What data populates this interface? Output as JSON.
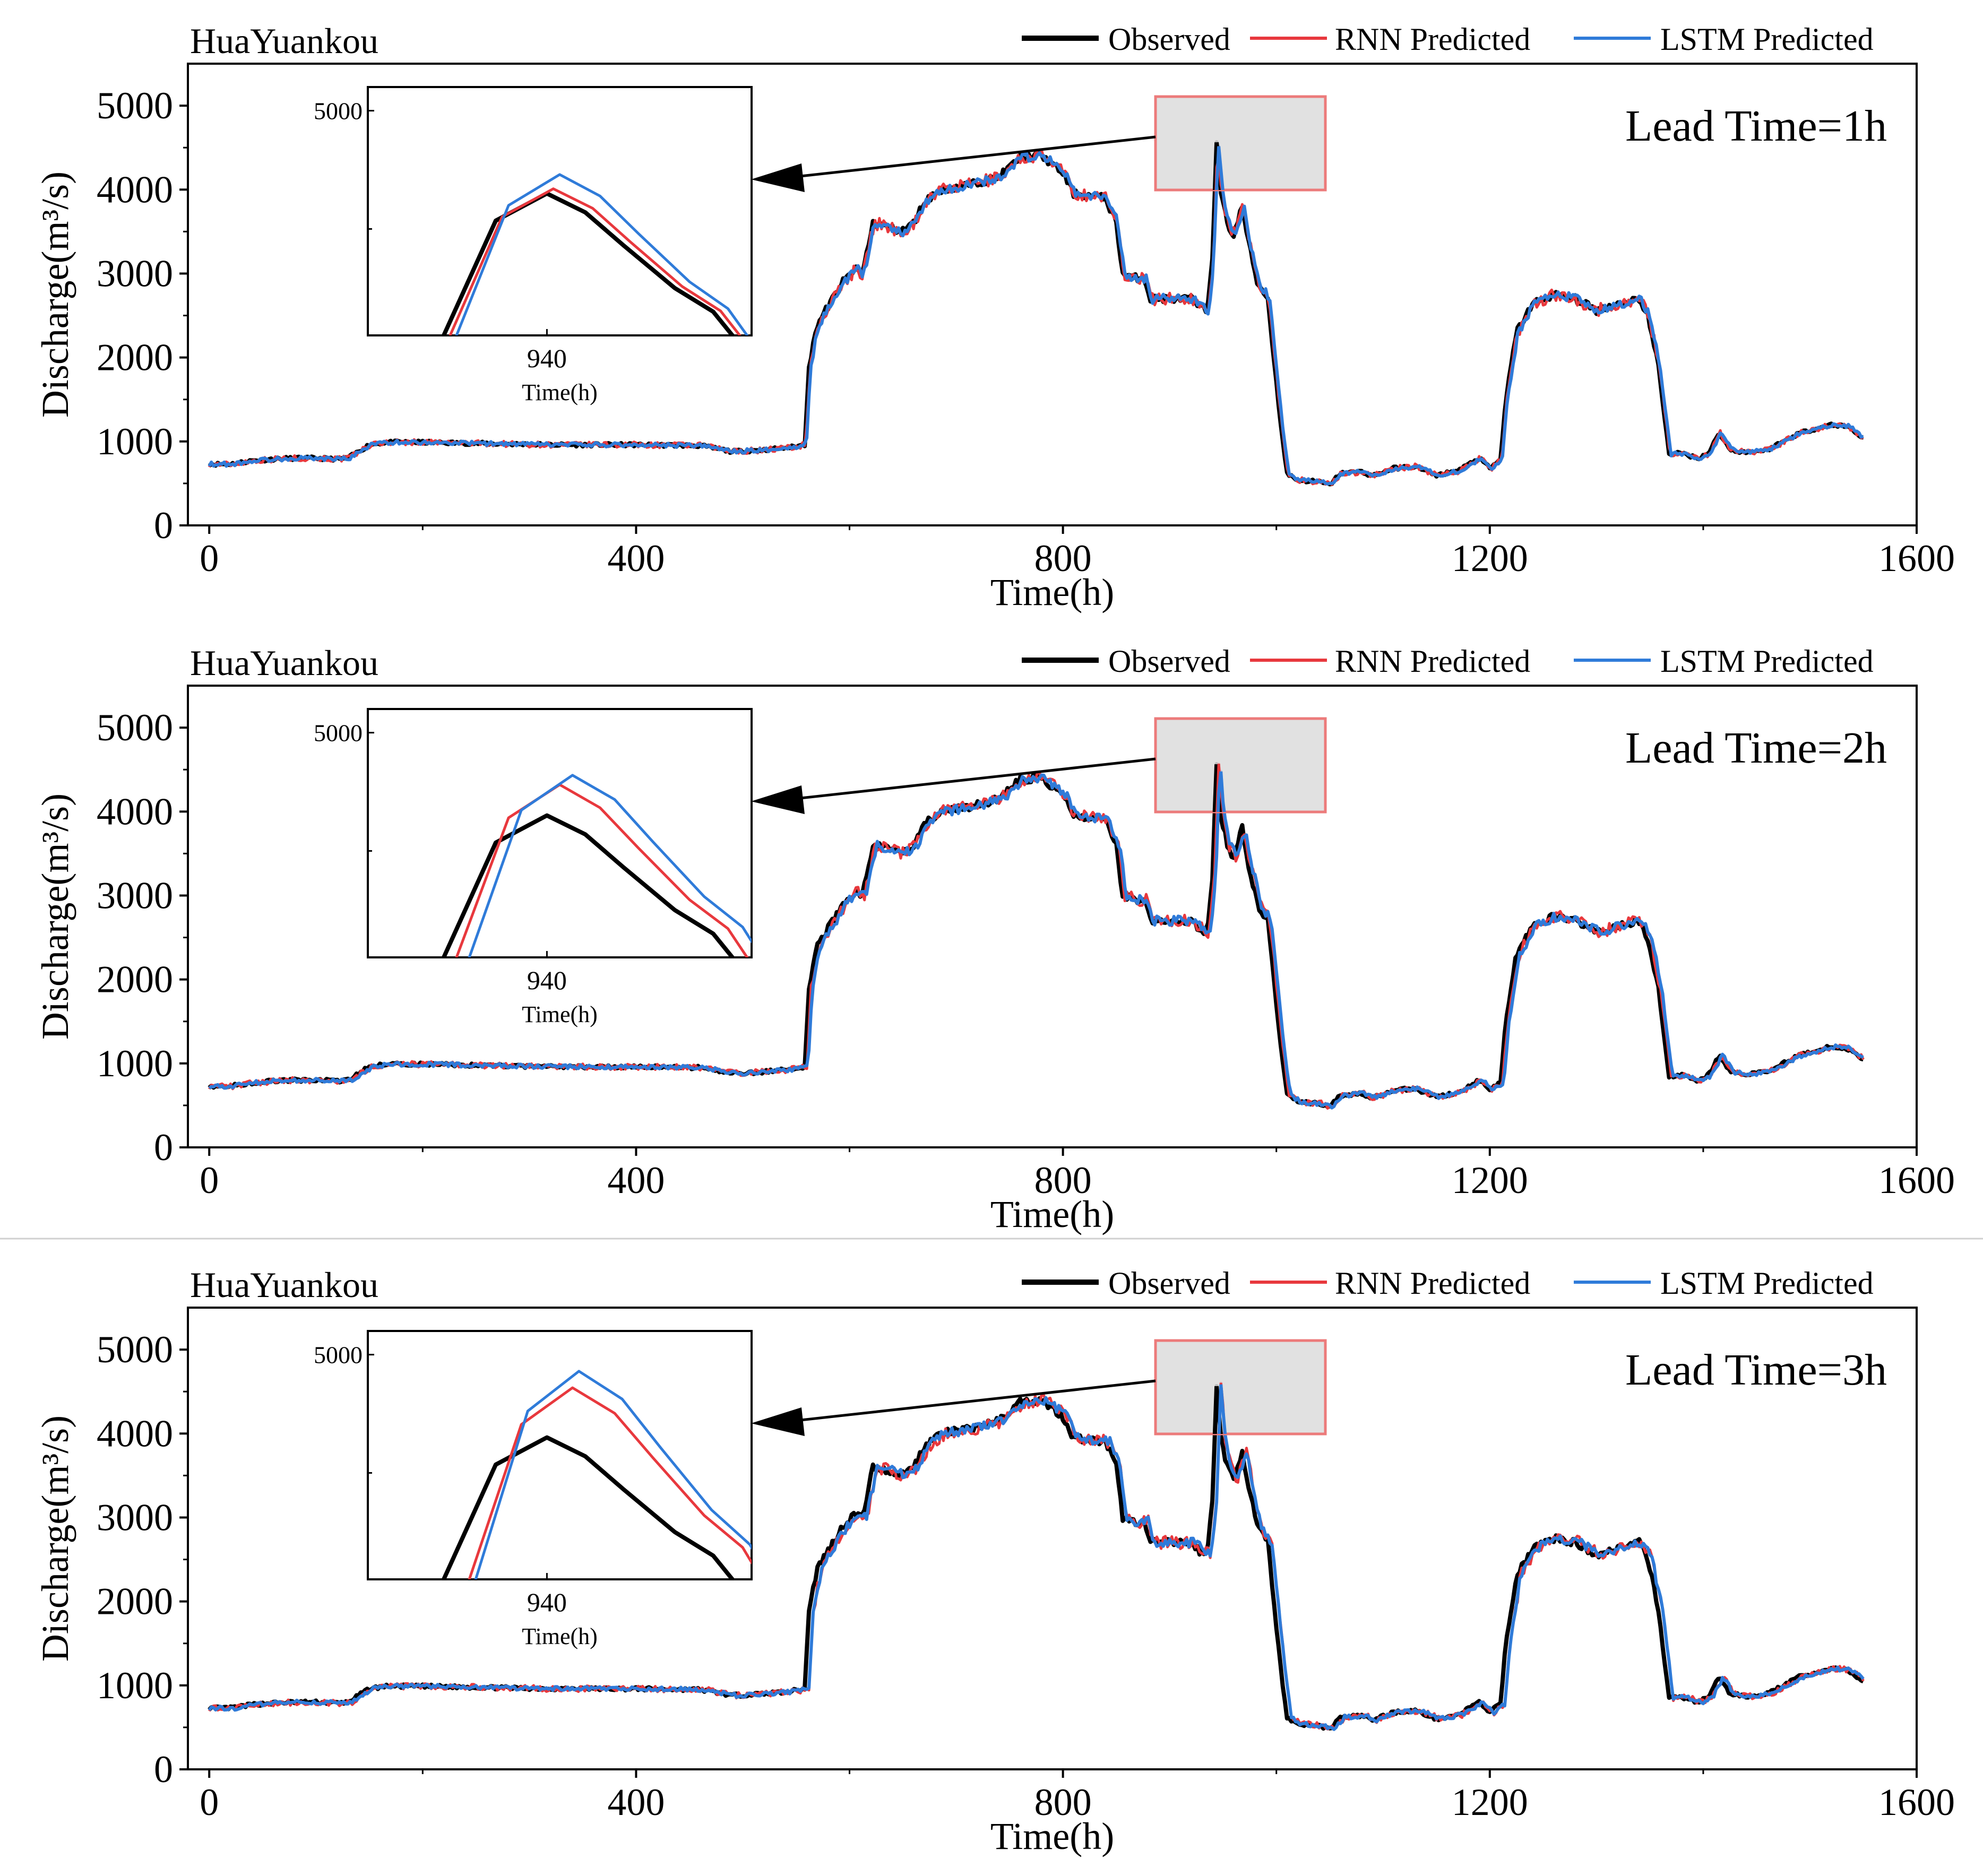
{
  "figure": {
    "series_legend": [
      {
        "name": "Observed",
        "color": "#000000"
      },
      {
        "name": "RNN   Predicted",
        "color": "#e8383d"
      },
      {
        "name": "LSTM   Predicted",
        "color": "#2f7bd9"
      }
    ],
    "inset_xlabel": "Time(h)",
    "inset_xtick": "940",
    "inset_ytick": "5000"
  },
  "chart_data": [
    {
      "type": "line",
      "station": "HuaYuankou",
      "annotation": "Lead Time=1h",
      "xlabel": "Time(h)",
      "ylabel": "Discharge(m³/s)",
      "xlim": [
        -20,
        1600
      ],
      "ylim": [
        0,
        5500
      ],
      "xticks": [
        0,
        400,
        800,
        1200,
        1600
      ],
      "yticks": [
        0,
        1000,
        2000,
        3000,
        4000,
        5000
      ],
      "observed_points": [
        [
          0,
          730
        ],
        [
          20,
          730
        ],
        [
          40,
          770
        ],
        [
          60,
          790
        ],
        [
          80,
          800
        ],
        [
          100,
          800
        ],
        [
          120,
          790
        ],
        [
          130,
          800
        ],
        [
          150,
          960
        ],
        [
          165,
          990
        ],
        [
          200,
          990
        ],
        [
          260,
          975
        ],
        [
          320,
          960
        ],
        [
          400,
          960
        ],
        [
          460,
          950
        ],
        [
          490,
          880
        ],
        [
          520,
          900
        ],
        [
          545,
          930
        ],
        [
          558,
          960
        ],
        [
          562,
          1900
        ],
        [
          570,
          2400
        ],
        [
          582,
          2650
        ],
        [
          594,
          2900
        ],
        [
          605,
          3050
        ],
        [
          612,
          3000
        ],
        [
          622,
          3600
        ],
        [
          635,
          3560
        ],
        [
          648,
          3500
        ],
        [
          660,
          3600
        ],
        [
          670,
          3850
        ],
        [
          685,
          4000
        ],
        [
          710,
          4050
        ],
        [
          740,
          4150
        ],
        [
          760,
          4380
        ],
        [
          780,
          4400
        ],
        [
          800,
          4200
        ],
        [
          810,
          3950
        ],
        [
          840,
          3900
        ],
        [
          850,
          3600
        ],
        [
          856,
          3000
        ],
        [
          866,
          2950
        ],
        [
          876,
          2950
        ],
        [
          882,
          2700
        ],
        [
          900,
          2700
        ],
        [
          920,
          2700
        ],
        [
          928,
          2600
        ],
        [
          935,
          2550
        ],
        [
          940,
          3200
        ],
        [
          944,
          4600
        ],
        [
          948,
          3950
        ],
        [
          954,
          3600
        ],
        [
          960,
          3450
        ],
        [
          968,
          3800
        ],
        [
          975,
          3300
        ],
        [
          982,
          2900
        ],
        [
          992,
          2700
        ],
        [
          1000,
          1700
        ],
        [
          1005,
          1100
        ],
        [
          1010,
          620
        ],
        [
          1020,
          540
        ],
        [
          1040,
          520
        ],
        [
          1050,
          480
        ],
        [
          1060,
          620
        ],
        [
          1080,
          640
        ],
        [
          1090,
          590
        ],
        [
          1110,
          680
        ],
        [
          1130,
          700
        ],
        [
          1150,
          600
        ],
        [
          1170,
          650
        ],
        [
          1190,
          800
        ],
        [
          1200,
          680
        ],
        [
          1210,
          780
        ],
        [
          1215,
          1500
        ],
        [
          1225,
          2300
        ],
        [
          1240,
          2640
        ],
        [
          1260,
          2750
        ],
        [
          1280,
          2700
        ],
        [
          1300,
          2560
        ],
        [
          1320,
          2640
        ],
        [
          1340,
          2700
        ],
        [
          1348,
          2500
        ],
        [
          1358,
          1900
        ],
        [
          1368,
          850
        ],
        [
          1380,
          860
        ],
        [
          1395,
          800
        ],
        [
          1405,
          860
        ],
        [
          1415,
          1100
        ],
        [
          1425,
          900
        ],
        [
          1440,
          870
        ],
        [
          1460,
          900
        ],
        [
          1490,
          1100
        ],
        [
          1520,
          1200
        ],
        [
          1535,
          1180
        ],
        [
          1550,
          1040
        ]
      ],
      "inset": {
        "x_range": [
          912,
          972
        ],
        "y_range": [
          4050,
          5100
        ],
        "observed_peak": 4650,
        "rnn_peak": 4670,
        "lstm_peak": 4730,
        "rnn_lag_h": 1,
        "lstm_lag_h": 2
      }
    },
    {
      "type": "line",
      "station": "HuaYuankou",
      "annotation": "Lead Time=2h",
      "xlabel": "Time(h)",
      "ylabel": "Discharge(m³/s)",
      "xlim": [
        -20,
        1600
      ],
      "ylim": [
        0,
        5500
      ],
      "xticks": [
        0,
        400,
        800,
        1200,
        1600
      ],
      "yticks": [
        0,
        1000,
        2000,
        3000,
        4000,
        5000
      ],
      "observed_points": [
        [
          0,
          730
        ],
        [
          20,
          730
        ],
        [
          40,
          770
        ],
        [
          60,
          790
        ],
        [
          80,
          800
        ],
        [
          100,
          800
        ],
        [
          120,
          790
        ],
        [
          130,
          800
        ],
        [
          150,
          960
        ],
        [
          165,
          990
        ],
        [
          200,
          990
        ],
        [
          260,
          975
        ],
        [
          320,
          960
        ],
        [
          400,
          960
        ],
        [
          460,
          950
        ],
        [
          490,
          880
        ],
        [
          520,
          900
        ],
        [
          545,
          930
        ],
        [
          558,
          960
        ],
        [
          562,
          1900
        ],
        [
          570,
          2400
        ],
        [
          582,
          2650
        ],
        [
          594,
          2900
        ],
        [
          605,
          3050
        ],
        [
          612,
          3000
        ],
        [
          622,
          3600
        ],
        [
          635,
          3560
        ],
        [
          648,
          3500
        ],
        [
          660,
          3600
        ],
        [
          670,
          3850
        ],
        [
          685,
          4000
        ],
        [
          710,
          4050
        ],
        [
          740,
          4150
        ],
        [
          760,
          4380
        ],
        [
          780,
          4400
        ],
        [
          800,
          4200
        ],
        [
          810,
          3950
        ],
        [
          840,
          3900
        ],
        [
          850,
          3600
        ],
        [
          856,
          3000
        ],
        [
          866,
          2950
        ],
        [
          876,
          2950
        ],
        [
          882,
          2700
        ],
        [
          900,
          2700
        ],
        [
          920,
          2700
        ],
        [
          928,
          2600
        ],
        [
          935,
          2550
        ],
        [
          940,
          3200
        ],
        [
          944,
          4600
        ],
        [
          948,
          3950
        ],
        [
          954,
          3600
        ],
        [
          960,
          3450
        ],
        [
          968,
          3800
        ],
        [
          975,
          3300
        ],
        [
          982,
          2900
        ],
        [
          992,
          2700
        ],
        [
          1000,
          1700
        ],
        [
          1005,
          1100
        ],
        [
          1010,
          620
        ],
        [
          1020,
          540
        ],
        [
          1040,
          520
        ],
        [
          1050,
          480
        ],
        [
          1060,
          620
        ],
        [
          1080,
          640
        ],
        [
          1090,
          590
        ],
        [
          1110,
          680
        ],
        [
          1130,
          700
        ],
        [
          1150,
          600
        ],
        [
          1170,
          650
        ],
        [
          1190,
          800
        ],
        [
          1200,
          680
        ],
        [
          1210,
          780
        ],
        [
          1215,
          1500
        ],
        [
          1225,
          2300
        ],
        [
          1240,
          2640
        ],
        [
          1260,
          2750
        ],
        [
          1280,
          2700
        ],
        [
          1300,
          2560
        ],
        [
          1320,
          2640
        ],
        [
          1340,
          2700
        ],
        [
          1348,
          2500
        ],
        [
          1358,
          1900
        ],
        [
          1368,
          850
        ],
        [
          1380,
          860
        ],
        [
          1395,
          800
        ],
        [
          1405,
          860
        ],
        [
          1415,
          1100
        ],
        [
          1425,
          900
        ],
        [
          1440,
          870
        ],
        [
          1460,
          900
        ],
        [
          1490,
          1100
        ],
        [
          1520,
          1200
        ],
        [
          1535,
          1180
        ],
        [
          1550,
          1040
        ]
      ],
      "inset": {
        "x_range": [
          912,
          972
        ],
        "y_range": [
          4050,
          5100
        ],
        "observed_peak": 4650,
        "rnn_peak": 4780,
        "lstm_peak": 4820,
        "rnn_lag_h": 2,
        "lstm_lag_h": 4
      }
    },
    {
      "type": "line",
      "station": "HuaYuankou",
      "annotation": "Lead Time=3h",
      "xlabel": "Time(h)",
      "ylabel": "Discharge(m³/s)",
      "xlim": [
        -20,
        1600
      ],
      "ylim": [
        0,
        5500
      ],
      "xticks": [
        0,
        400,
        800,
        1200,
        1600
      ],
      "yticks": [
        0,
        1000,
        2000,
        3000,
        4000,
        5000
      ],
      "observed_points": [
        [
          0,
          730
        ],
        [
          20,
          730
        ],
        [
          40,
          770
        ],
        [
          60,
          790
        ],
        [
          80,
          800
        ],
        [
          100,
          800
        ],
        [
          120,
          790
        ],
        [
          130,
          800
        ],
        [
          150,
          960
        ],
        [
          165,
          990
        ],
        [
          200,
          990
        ],
        [
          260,
          975
        ],
        [
          320,
          960
        ],
        [
          400,
          960
        ],
        [
          460,
          950
        ],
        [
          490,
          880
        ],
        [
          520,
          900
        ],
        [
          545,
          930
        ],
        [
          558,
          960
        ],
        [
          562,
          1900
        ],
        [
          570,
          2400
        ],
        [
          582,
          2650
        ],
        [
          594,
          2900
        ],
        [
          605,
          3050
        ],
        [
          612,
          3000
        ],
        [
          622,
          3600
        ],
        [
          635,
          3560
        ],
        [
          648,
          3500
        ],
        [
          660,
          3600
        ],
        [
          670,
          3850
        ],
        [
          685,
          4000
        ],
        [
          710,
          4050
        ],
        [
          740,
          4150
        ],
        [
          760,
          4380
        ],
        [
          780,
          4400
        ],
        [
          800,
          4200
        ],
        [
          810,
          3950
        ],
        [
          840,
          3900
        ],
        [
          850,
          3600
        ],
        [
          856,
          3000
        ],
        [
          866,
          2950
        ],
        [
          876,
          2950
        ],
        [
          882,
          2700
        ],
        [
          900,
          2700
        ],
        [
          920,
          2700
        ],
        [
          928,
          2600
        ],
        [
          935,
          2550
        ],
        [
          940,
          3200
        ],
        [
          944,
          4600
        ],
        [
          948,
          3950
        ],
        [
          954,
          3600
        ],
        [
          960,
          3450
        ],
        [
          968,
          3800
        ],
        [
          975,
          3300
        ],
        [
          982,
          2900
        ],
        [
          992,
          2700
        ],
        [
          1000,
          1700
        ],
        [
          1005,
          1100
        ],
        [
          1010,
          620
        ],
        [
          1020,
          540
        ],
        [
          1040,
          520
        ],
        [
          1050,
          480
        ],
        [
          1060,
          620
        ],
        [
          1080,
          640
        ],
        [
          1090,
          590
        ],
        [
          1110,
          680
        ],
        [
          1130,
          700
        ],
        [
          1150,
          600
        ],
        [
          1170,
          650
        ],
        [
          1190,
          800
        ],
        [
          1200,
          680
        ],
        [
          1210,
          780
        ],
        [
          1215,
          1500
        ],
        [
          1225,
          2300
        ],
        [
          1240,
          2640
        ],
        [
          1260,
          2750
        ],
        [
          1280,
          2700
        ],
        [
          1300,
          2560
        ],
        [
          1320,
          2640
        ],
        [
          1340,
          2700
        ],
        [
          1348,
          2500
        ],
        [
          1358,
          1900
        ],
        [
          1368,
          850
        ],
        [
          1380,
          860
        ],
        [
          1395,
          800
        ],
        [
          1405,
          860
        ],
        [
          1415,
          1100
        ],
        [
          1425,
          900
        ],
        [
          1440,
          870
        ],
        [
          1460,
          900
        ],
        [
          1490,
          1100
        ],
        [
          1520,
          1200
        ],
        [
          1535,
          1180
        ],
        [
          1550,
          1040
        ]
      ],
      "inset": {
        "x_range": [
          912,
          972
        ],
        "y_range": [
          4050,
          5100
        ],
        "observed_peak": 4650,
        "rnn_peak": 4860,
        "lstm_peak": 4930,
        "rnn_lag_h": 4,
        "lstm_lag_h": 5
      }
    }
  ]
}
